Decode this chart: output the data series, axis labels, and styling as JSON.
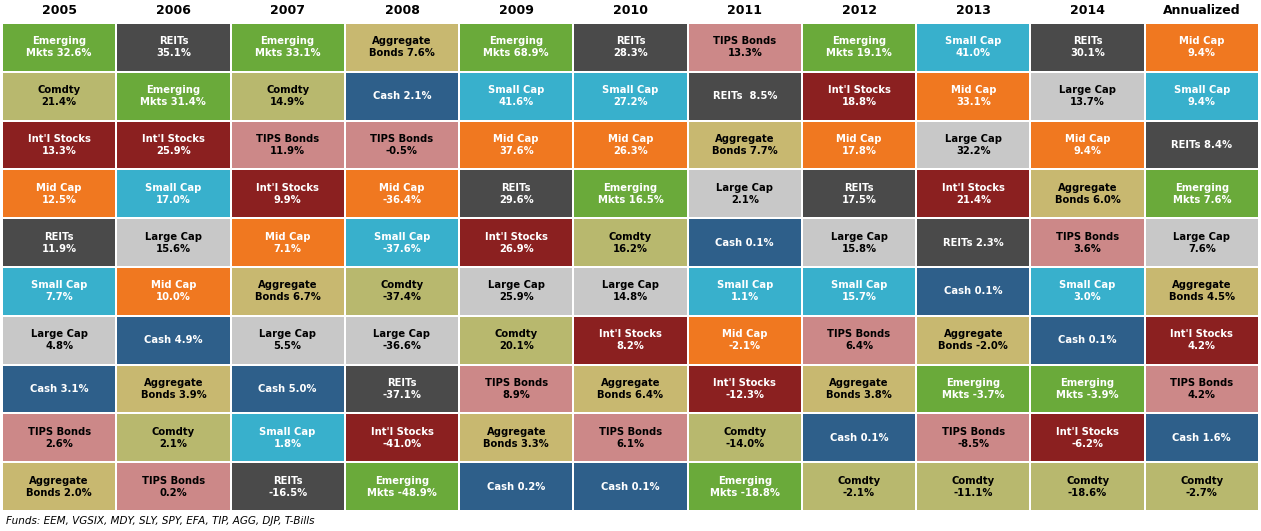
{
  "years": [
    "2005",
    "2006",
    "2007",
    "2008",
    "2009",
    "2010",
    "2011",
    "2012",
    "2013",
    "2014",
    "Annualized"
  ],
  "footer": "Funds: EEM, VGSIX, MDY, SLY, SPY, EFA, TIP, AGG, DJP, T-Bills",
  "asset_colors": {
    "Emerging Mkts": "#6aaa3a",
    "Comdty": "#b8b86e",
    "Int'l Stocks": "#8b2020",
    "Mid Cap": "#f07820",
    "REITs": "#4a4a4a",
    "Small Cap": "#38b0cc",
    "Large Cap": "#c8c8c8",
    "Cash": "#2e5f8a",
    "TIPS Bonds": "#cc8888",
    "Aggregate Bonds": "#c8b870"
  },
  "columns": [
    [
      {
        "label": "Emerging\nMkts 32.6%",
        "asset": "Emerging Mkts",
        "text_color": "white"
      },
      {
        "label": "Comdty\n21.4%",
        "asset": "Comdty",
        "text_color": "black"
      },
      {
        "label": "Int'l Stocks\n13.3%",
        "asset": "Int'l Stocks",
        "text_color": "white"
      },
      {
        "label": "Mid Cap\n12.5%",
        "asset": "Mid Cap",
        "text_color": "white"
      },
      {
        "label": "REITs\n11.9%",
        "asset": "REITs",
        "text_color": "white"
      },
      {
        "label": "Small Cap\n7.7%",
        "asset": "Small Cap",
        "text_color": "white"
      },
      {
        "label": "Large Cap\n4.8%",
        "asset": "Large Cap",
        "text_color": "black"
      },
      {
        "label": "Cash 3.1%",
        "asset": "Cash",
        "text_color": "white"
      },
      {
        "label": "TIPS Bonds\n2.6%",
        "asset": "TIPS Bonds",
        "text_color": "black"
      },
      {
        "label": "Aggregate\nBonds 2.0%",
        "asset": "Aggregate Bonds",
        "text_color": "black"
      }
    ],
    [
      {
        "label": "REITs\n35.1%",
        "asset": "REITs",
        "text_color": "white"
      },
      {
        "label": "Emerging\nMkts 31.4%",
        "asset": "Emerging Mkts",
        "text_color": "white"
      },
      {
        "label": "Int'l Stocks\n25.9%",
        "asset": "Int'l Stocks",
        "text_color": "white"
      },
      {
        "label": "Small Cap\n17.0%",
        "asset": "Small Cap",
        "text_color": "white"
      },
      {
        "label": "Large Cap\n15.6%",
        "asset": "Large Cap",
        "text_color": "black"
      },
      {
        "label": "Mid Cap\n10.0%",
        "asset": "Mid Cap",
        "text_color": "white"
      },
      {
        "label": "Cash 4.9%",
        "asset": "Cash",
        "text_color": "white"
      },
      {
        "label": "Aggregate\nBonds 3.9%",
        "asset": "Aggregate Bonds",
        "text_color": "black"
      },
      {
        "label": "Comdty\n2.1%",
        "asset": "Comdty",
        "text_color": "black"
      },
      {
        "label": "TIPS Bonds\n0.2%",
        "asset": "TIPS Bonds",
        "text_color": "black"
      }
    ],
    [
      {
        "label": "Emerging\nMkts 33.1%",
        "asset": "Emerging Mkts",
        "text_color": "white"
      },
      {
        "label": "Comdty\n14.9%",
        "asset": "Comdty",
        "text_color": "black"
      },
      {
        "label": "TIPS Bonds\n11.9%",
        "asset": "TIPS Bonds",
        "text_color": "black"
      },
      {
        "label": "Int'l Stocks\n9.9%",
        "asset": "Int'l Stocks",
        "text_color": "white"
      },
      {
        "label": "Mid Cap\n7.1%",
        "asset": "Mid Cap",
        "text_color": "white"
      },
      {
        "label": "Aggregate\nBonds 6.7%",
        "asset": "Aggregate Bonds",
        "text_color": "black"
      },
      {
        "label": "Large Cap\n5.5%",
        "asset": "Large Cap",
        "text_color": "black"
      },
      {
        "label": "Cash 5.0%",
        "asset": "Cash",
        "text_color": "white"
      },
      {
        "label": "Small Cap\n1.8%",
        "asset": "Small Cap",
        "text_color": "white"
      },
      {
        "label": "REITs\n-16.5%",
        "asset": "REITs",
        "text_color": "white"
      }
    ],
    [
      {
        "label": "Aggregate\nBonds 7.6%",
        "asset": "Aggregate Bonds",
        "text_color": "black"
      },
      {
        "label": "Cash 2.1%",
        "asset": "Cash",
        "text_color": "white"
      },
      {
        "label": "TIPS Bonds\n-0.5%",
        "asset": "TIPS Bonds",
        "text_color": "black"
      },
      {
        "label": "Mid Cap\n-36.4%",
        "asset": "Mid Cap",
        "text_color": "white"
      },
      {
        "label": "Small Cap\n-37.6%",
        "asset": "Small Cap",
        "text_color": "white"
      },
      {
        "label": "Comdty\n-37.4%",
        "asset": "Comdty",
        "text_color": "black"
      },
      {
        "label": "Large Cap\n-36.6%",
        "asset": "Large Cap",
        "text_color": "black"
      },
      {
        "label": "REITs\n-37.1%",
        "asset": "REITs",
        "text_color": "white"
      },
      {
        "label": "Int'l Stocks\n-41.0%",
        "asset": "Int'l Stocks",
        "text_color": "white"
      },
      {
        "label": "Emerging\nMkts -48.9%",
        "asset": "Emerging Mkts",
        "text_color": "white"
      }
    ],
    [
      {
        "label": "Emerging\nMkts 68.9%",
        "asset": "Emerging Mkts",
        "text_color": "white"
      },
      {
        "label": "Small Cap\n41.6%",
        "asset": "Small Cap",
        "text_color": "white"
      },
      {
        "label": "Mid Cap\n37.6%",
        "asset": "Mid Cap",
        "text_color": "white"
      },
      {
        "label": "REITs\n29.6%",
        "asset": "REITs",
        "text_color": "white"
      },
      {
        "label": "Int'l Stocks\n26.9%",
        "asset": "Int'l Stocks",
        "text_color": "white"
      },
      {
        "label": "Large Cap\n25.9%",
        "asset": "Large Cap",
        "text_color": "black"
      },
      {
        "label": "Comdty\n20.1%",
        "asset": "Comdty",
        "text_color": "black"
      },
      {
        "label": "TIPS Bonds\n8.9%",
        "asset": "TIPS Bonds",
        "text_color": "black"
      },
      {
        "label": "Aggregate\nBonds 3.3%",
        "asset": "Aggregate Bonds",
        "text_color": "black"
      },
      {
        "label": "Cash 0.2%",
        "asset": "Cash",
        "text_color": "white"
      }
    ],
    [
      {
        "label": "REITs\n28.3%",
        "asset": "REITs",
        "text_color": "white"
      },
      {
        "label": "Small Cap\n27.2%",
        "asset": "Small Cap",
        "text_color": "white"
      },
      {
        "label": "Mid Cap\n26.3%",
        "asset": "Mid Cap",
        "text_color": "white"
      },
      {
        "label": "Emerging\nMkts 16.5%",
        "asset": "Emerging Mkts",
        "text_color": "white"
      },
      {
        "label": "Comdty\n16.2%",
        "asset": "Comdty",
        "text_color": "black"
      },
      {
        "label": "Large Cap\n14.8%",
        "asset": "Large Cap",
        "text_color": "black"
      },
      {
        "label": "Int'l Stocks\n8.2%",
        "asset": "Int'l Stocks",
        "text_color": "white"
      },
      {
        "label": "Aggregate\nBonds 6.4%",
        "asset": "Aggregate Bonds",
        "text_color": "black"
      },
      {
        "label": "TIPS Bonds\n6.1%",
        "asset": "TIPS Bonds",
        "text_color": "black"
      },
      {
        "label": "Cash 0.1%",
        "asset": "Cash",
        "text_color": "white"
      }
    ],
    [
      {
        "label": "TIPS Bonds\n13.3%",
        "asset": "TIPS Bonds",
        "text_color": "black"
      },
      {
        "label": "REITs  8.5%",
        "asset": "REITs",
        "text_color": "white"
      },
      {
        "label": "Aggregate\nBonds 7.7%",
        "asset": "Aggregate Bonds",
        "text_color": "black"
      },
      {
        "label": "Large Cap\n2.1%",
        "asset": "Large Cap",
        "text_color": "black"
      },
      {
        "label": "Cash 0.1%",
        "asset": "Cash",
        "text_color": "white"
      },
      {
        "label": "Small Cap\n1.1%",
        "asset": "Small Cap",
        "text_color": "white"
      },
      {
        "label": "Mid Cap\n-2.1%",
        "asset": "Mid Cap",
        "text_color": "white"
      },
      {
        "label": "Int'l Stocks\n-12.3%",
        "asset": "Int'l Stocks",
        "text_color": "white"
      },
      {
        "label": "Comdty\n-14.0%",
        "asset": "Comdty",
        "text_color": "black"
      },
      {
        "label": "Emerging\nMkts -18.8%",
        "asset": "Emerging Mkts",
        "text_color": "white"
      }
    ],
    [
      {
        "label": "Emerging\nMkts 19.1%",
        "asset": "Emerging Mkts",
        "text_color": "white"
      },
      {
        "label": "Int'l Stocks\n18.8%",
        "asset": "Int'l Stocks",
        "text_color": "white"
      },
      {
        "label": "Mid Cap\n17.8%",
        "asset": "Mid Cap",
        "text_color": "white"
      },
      {
        "label": "REITs\n17.5%",
        "asset": "REITs",
        "text_color": "white"
      },
      {
        "label": "Large Cap\n15.8%",
        "asset": "Large Cap",
        "text_color": "black"
      },
      {
        "label": "Small Cap\n15.7%",
        "asset": "Small Cap",
        "text_color": "white"
      },
      {
        "label": "TIPS Bonds\n6.4%",
        "asset": "TIPS Bonds",
        "text_color": "black"
      },
      {
        "label": "Aggregate\nBonds 3.8%",
        "asset": "Aggregate Bonds",
        "text_color": "black"
      },
      {
        "label": "Cash 0.1%",
        "asset": "Cash",
        "text_color": "white"
      },
      {
        "label": "Comdty\n-2.1%",
        "asset": "Comdty",
        "text_color": "black"
      }
    ],
    [
      {
        "label": "Small Cap\n41.0%",
        "asset": "Small Cap",
        "text_color": "white"
      },
      {
        "label": "Mid Cap\n33.1%",
        "asset": "Mid Cap",
        "text_color": "white"
      },
      {
        "label": "Large Cap\n32.2%",
        "asset": "Large Cap",
        "text_color": "black"
      },
      {
        "label": "Int'l Stocks\n21.4%",
        "asset": "Int'l Stocks",
        "text_color": "white"
      },
      {
        "label": "REITs 2.3%",
        "asset": "REITs",
        "text_color": "white"
      },
      {
        "label": "Cash 0.1%",
        "asset": "Cash",
        "text_color": "white"
      },
      {
        "label": "Aggregate\nBonds -2.0%",
        "asset": "Aggregate Bonds",
        "text_color": "black"
      },
      {
        "label": "Emerging\nMkts -3.7%",
        "asset": "Emerging Mkts",
        "text_color": "white"
      },
      {
        "label": "TIPS Bonds\n-8.5%",
        "asset": "TIPS Bonds",
        "text_color": "black"
      },
      {
        "label": "Comdty\n-11.1%",
        "asset": "Comdty",
        "text_color": "black"
      }
    ],
    [
      {
        "label": "REITs\n30.1%",
        "asset": "REITs",
        "text_color": "white"
      },
      {
        "label": "Large Cap\n13.7%",
        "asset": "Large Cap",
        "text_color": "black"
      },
      {
        "label": "Mid Cap\n9.4%",
        "asset": "Mid Cap",
        "text_color": "white"
      },
      {
        "label": "Aggregate\nBonds 6.0%",
        "asset": "Aggregate Bonds",
        "text_color": "black"
      },
      {
        "label": "TIPS Bonds\n3.6%",
        "asset": "TIPS Bonds",
        "text_color": "black"
      },
      {
        "label": "Small Cap\n3.0%",
        "asset": "Small Cap",
        "text_color": "white"
      },
      {
        "label": "Cash 0.1%",
        "asset": "Cash",
        "text_color": "white"
      },
      {
        "label": "Emerging\nMkts -3.9%",
        "asset": "Emerging Mkts",
        "text_color": "white"
      },
      {
        "label": "Int'l Stocks\n-6.2%",
        "asset": "Int'l Stocks",
        "text_color": "white"
      },
      {
        "label": "Comdty\n-18.6%",
        "asset": "Comdty",
        "text_color": "black"
      }
    ],
    [
      {
        "label": "Mid Cap\n9.4%",
        "asset": "Mid Cap",
        "text_color": "white"
      },
      {
        "label": "Small Cap\n9.4%",
        "asset": "Small Cap",
        "text_color": "white"
      },
      {
        "label": "REITs 8.4%",
        "asset": "REITs",
        "text_color": "white"
      },
      {
        "label": "Emerging\nMkts 7.6%",
        "asset": "Emerging Mkts",
        "text_color": "white"
      },
      {
        "label": "Large Cap\n7.6%",
        "asset": "Large Cap",
        "text_color": "black"
      },
      {
        "label": "Aggregate\nBonds 4.5%",
        "asset": "Aggregate Bonds",
        "text_color": "black"
      },
      {
        "label": "Int'l Stocks\n4.2%",
        "asset": "Int'l Stocks",
        "text_color": "white"
      },
      {
        "label": "TIPS Bonds\n4.2%",
        "asset": "TIPS Bonds",
        "text_color": "black"
      },
      {
        "label": "Cash 1.6%",
        "asset": "Cash",
        "text_color": "white"
      },
      {
        "label": "Comdty\n-2.7%",
        "asset": "Comdty",
        "text_color": "black"
      }
    ]
  ]
}
